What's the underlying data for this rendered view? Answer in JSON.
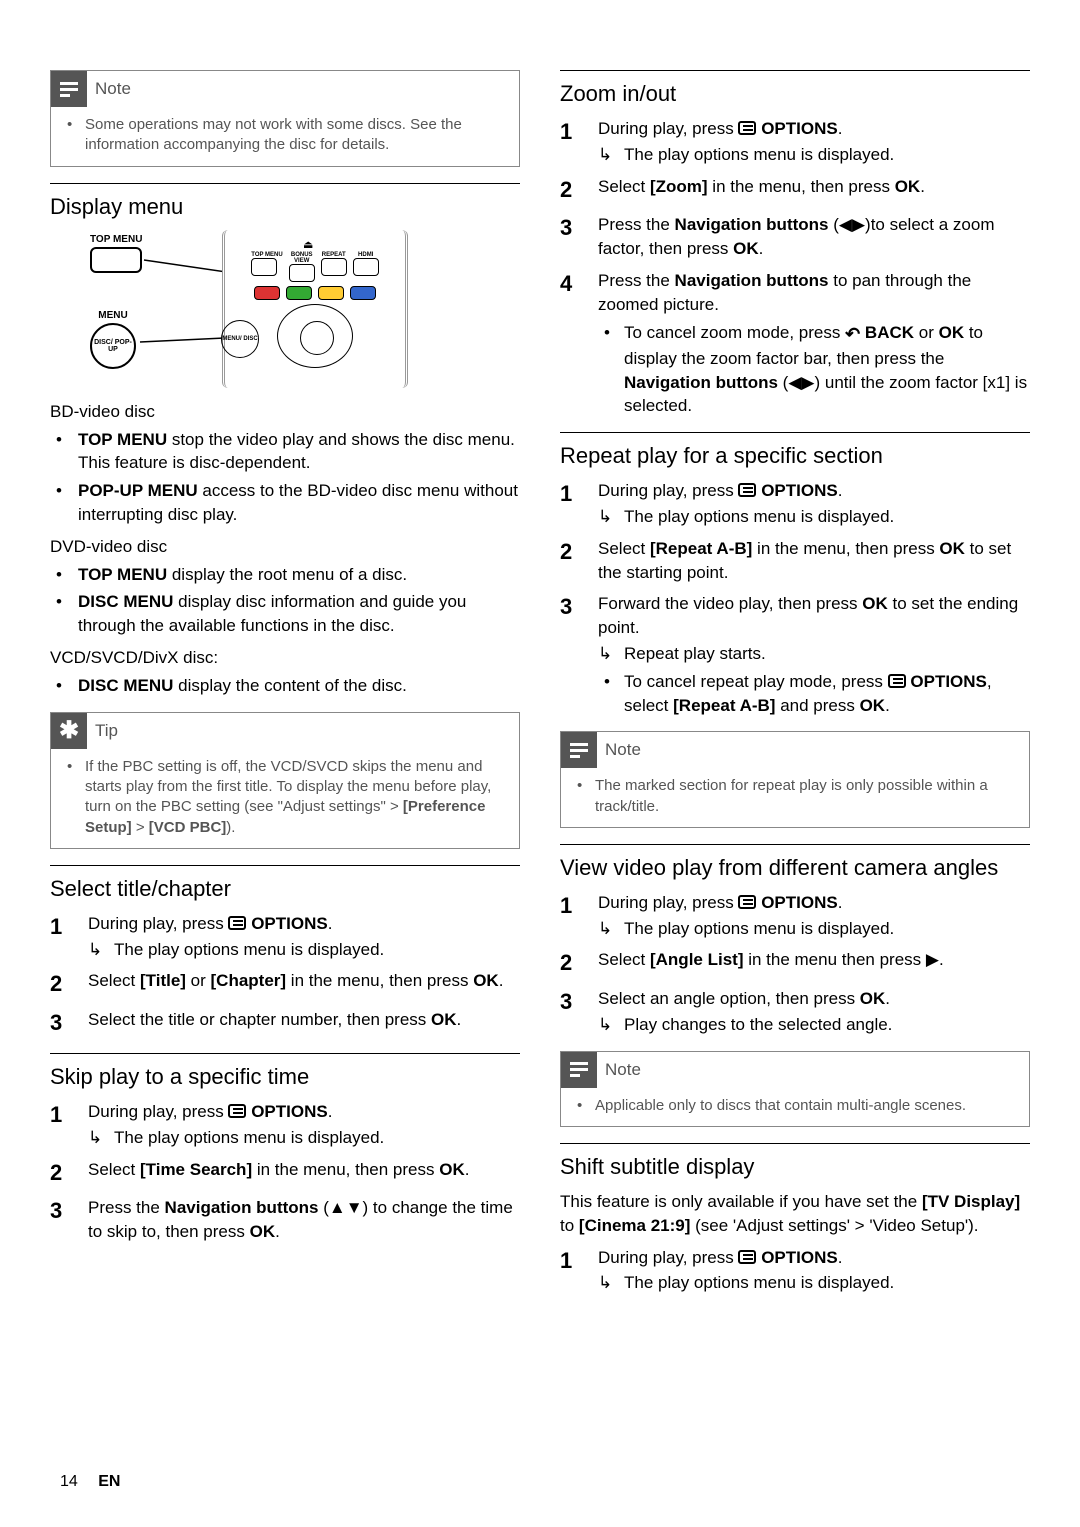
{
  "page": {
    "number": "14",
    "lang": "EN"
  },
  "left": {
    "note1": {
      "label": "Note",
      "text": "Some operations may not work with some discs. See the information accompanying the disc for details."
    },
    "displayMenu": {
      "heading": "Display menu",
      "labels": {
        "topMenu": "TOP MENU",
        "menu": "MENU",
        "discPopup": "DISC/\nPOP-UP",
        "menuDisc": "MENU/\nDISC",
        "panelTop": [
          "TOP MENU",
          "BONUS\nVIEW",
          "REPEAT",
          "HDMI"
        ]
      }
    },
    "bd": {
      "heading": "BD-video disc",
      "items": [
        {
          "bold": "TOP MENU",
          "text": " stop the video play and shows the disc menu. This feature is disc-dependent."
        },
        {
          "bold": "POP-UP MENU",
          "text": " access to the BD-video disc menu without interrupting disc play."
        }
      ]
    },
    "dvd": {
      "heading": "DVD-video disc",
      "items": [
        {
          "bold": "TOP MENU",
          "text": " display the root menu of a disc."
        },
        {
          "bold": "DISC MENU",
          "text": " display disc information and guide you through the available functions in the disc."
        }
      ]
    },
    "vcd": {
      "heading": "VCD/SVCD/DivX disc:",
      "items": [
        {
          "bold": "DISC MENU",
          "text": " display the content of the disc."
        }
      ]
    },
    "tip": {
      "label": "Tip",
      "text": "If the PBC setting is off, the VCD/SVCD skips the menu and starts play from the first title. To display the menu before play, turn on the PBC setting (see \"Adjust settings\" > [Preference Setup] > [VCD PBC])."
    },
    "selectTitle": {
      "heading": "Select title/chapter",
      "s1a": "During play, press ",
      "s1b": " OPTIONS",
      "s1c": ".",
      "s1r": "The play options menu is displayed.",
      "s2a": "Select ",
      "s2b": "[Title]",
      "s2c": " or ",
      "s2d": "[Chapter]",
      "s2e": " in the menu, then press ",
      "s2f": "OK",
      "s2g": ".",
      "s3a": "Select the title or chapter number, then press ",
      "s3b": "OK",
      "s3c": "."
    },
    "skipPlay": {
      "heading": "Skip play to a specific time",
      "s1a": "During play, press ",
      "s1b": " OPTIONS",
      "s1c": ".",
      "s1r": "The play options menu is displayed.",
      "s2a": "Select ",
      "s2b": "[Time Search]",
      "s2c": " in the menu, then press ",
      "s2d": "OK",
      "s2e": ".",
      "s3a": "Press the ",
      "s3b": "Navigation buttons",
      "s3c": " (▲▼) to change the time to skip to, then press ",
      "s3d": "OK",
      "s3e": "."
    }
  },
  "right": {
    "zoom": {
      "heading": "Zoom in/out",
      "s1a": "During play, press ",
      "s1b": " OPTIONS",
      "s1c": ".",
      "s1r": "The play options menu is displayed.",
      "s2a": "Select ",
      "s2b": "[Zoom]",
      "s2c": " in the menu, then press ",
      "s2d": "OK",
      "s2e": ".",
      "s3a": "Press the ",
      "s3b": "Navigation buttons",
      "s3c": " (◀▶)to select a zoom factor, then press ",
      "s3d": "OK",
      "s3e": ".",
      "s4a": "Press the ",
      "s4b": "Navigation buttons",
      "s4c": " to pan through the zoomed picture.",
      "s4ba": "To cancel zoom mode, press ",
      "s4bb": " BACK",
      "s4bc": " or ",
      "s4bd": "OK",
      "s4be": " to display the zoom factor bar, then press the ",
      "s4bf": "Navigation buttons",
      "s4bg": " (◀▶) until the zoom factor [x1] is selected."
    },
    "repeat": {
      "heading": "Repeat play for a specific section",
      "s1a": "During play, press ",
      "s1b": " OPTIONS",
      "s1c": ".",
      "s1r": "The play options menu is displayed.",
      "s2a": "Select ",
      "s2b": "[Repeat A-B]",
      "s2c": " in the menu, then press ",
      "s2d": "OK",
      "s2e": " to set the starting point.",
      "s3a": "Forward the video play, then press ",
      "s3b": "OK",
      "s3c": " to set the ending point.",
      "s3r": "Repeat play starts.",
      "s3ba": "To cancel repeat play mode, press ",
      "s3bb": " OPTIONS",
      "s3bc": ", select ",
      "s3bd": "[Repeat A-B]",
      "s3be": " and press ",
      "s3bf": "OK",
      "s3bg": "."
    },
    "note2": {
      "label": "Note",
      "text": "The marked section for repeat play is only possible within a track/title."
    },
    "angles": {
      "heading": "View video play from different camera angles",
      "s1a": "During play, press ",
      "s1b": " OPTIONS",
      "s1c": ".",
      "s1r": "The play options menu is displayed.",
      "s2a": "Select ",
      "s2b": "[Angle List]",
      "s2c": " in the menu then press ▶.",
      "s3a": "Select an angle option, then press ",
      "s3b": "OK",
      "s3c": ".",
      "s3r": "Play changes to the selected angle."
    },
    "note3": {
      "label": "Note",
      "text": "Applicable only to discs that contain multi-angle scenes."
    },
    "subtitle": {
      "heading": "Shift subtitle display",
      "intro1": "This feature is only available if you have set the ",
      "intro2": "[TV Display]",
      "intro3": " to ",
      "intro4": "[Cinema 21:9]",
      "intro5": " (see 'Adjust settings' > 'Video Setup').",
      "s1a": "During play, press ",
      "s1b": " OPTIONS",
      "s1c": ".",
      "s1r": "The play options menu is displayed."
    }
  }
}
